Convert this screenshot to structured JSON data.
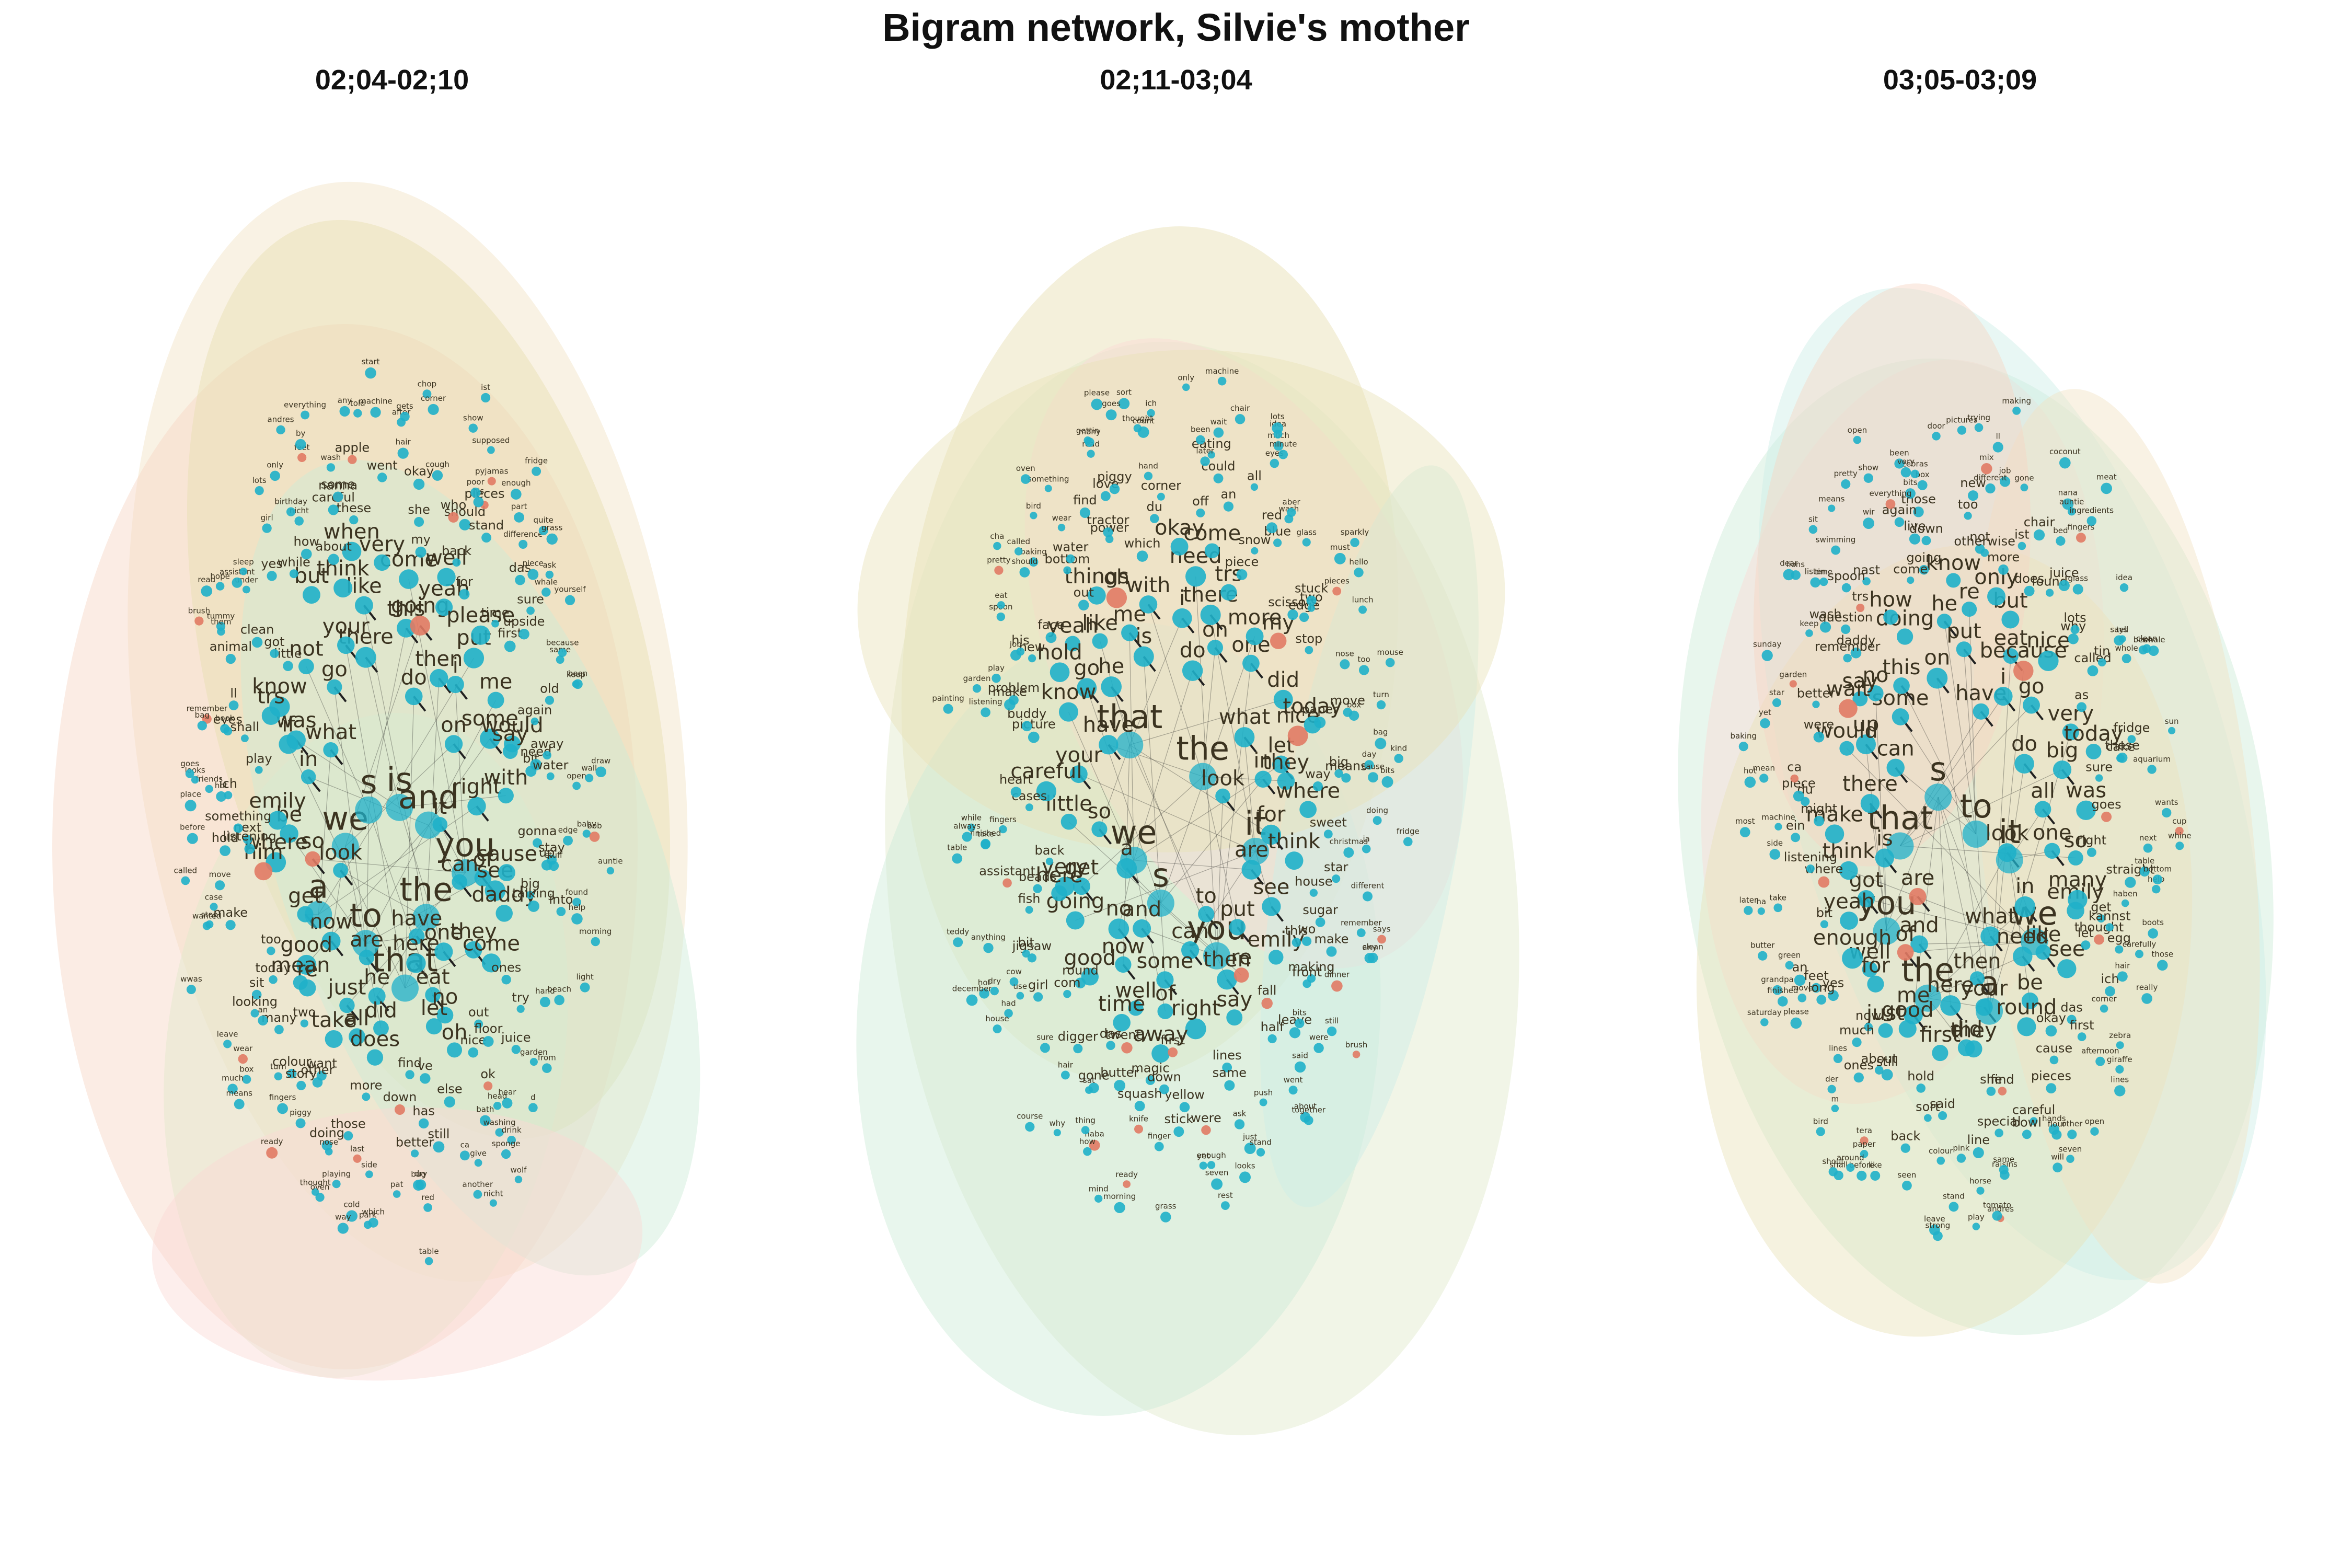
{
  "title": "Bigram network, Silvie's mother",
  "colors": {
    "node_primary": "#1fb0c9",
    "node_secondary": "#e17a64",
    "edge": "#222222",
    "label": "#3b3320",
    "community_fills": [
      "#f1e3c4",
      "#f7d4c4",
      "#e7ddb0",
      "#dfe8c9",
      "#cdebd6",
      "#fbd9d4",
      "#cdeee6",
      "#e9e2b8"
    ]
  },
  "panels": [
    {
      "title": "02;04-02;10",
      "big": [
        "you",
        "the",
        "that",
        "to",
        "a",
        "we",
        "s",
        "is",
        "and"
      ],
      "mid": [
        "it",
        "look",
        "do",
        "have",
        "what",
        "on",
        "are",
        "there",
        "can",
        "so",
        "then",
        "here",
        "go",
        "right",
        "now",
        "this",
        "one",
        "in",
        "i",
        "he",
        "your",
        "of",
        "get",
        "going",
        "eat",
        "was",
        "some",
        "just",
        "like",
        "they",
        "be",
        "put",
        "did",
        "not",
        "with",
        "good",
        "come",
        "no",
        "if",
        "me",
        "all",
        "think",
        "see",
        "where",
        "yeah",
        "let",
        "know",
        "would",
        "re",
        "very",
        "come",
        "emily",
        "please",
        "does",
        "but",
        "cause",
        "mean",
        "well",
        "oh",
        "trs",
        "say",
        "take",
        "when",
        "daddy",
        "him",
        "for",
        "find",
        "little",
        "bit",
        "two",
        "my",
        "out",
        "play",
        "first",
        "more",
        "about",
        "big",
        "too",
        "back",
        "ve",
        "got",
        "need",
        "want",
        "these",
        "ones",
        "next",
        "time",
        "down",
        "how",
        "gonna",
        "today",
        "she",
        "nice",
        "shall",
        "again",
        "other",
        "careful",
        "talking",
        "listening",
        "should",
        "has",
        "clean",
        "away",
        "many",
        "went",
        "floor",
        "something",
        "upside",
        "those",
        "while",
        "stay",
        "sit",
        "who",
        "else",
        "ll",
        "old",
        "colour",
        "nanna",
        "try",
        "hold",
        "stand",
        "better",
        "yes",
        "up",
        "looking",
        "okay",
        "ok",
        "eyes",
        "sure",
        "doing",
        "some",
        "into",
        "make",
        "pieces",
        "still",
        "animal",
        "water",
        "story",
        "apple",
        "juice",
        "ich",
        "das",
        "side",
        "nicht",
        "stuff",
        "an",
        "cough",
        "bath",
        "book",
        "same",
        "nose",
        "wash",
        "hand",
        "move",
        "his",
        "dry",
        "under",
        "open",
        "turn",
        "hair",
        "head",
        "hot",
        "piece",
        "last",
        "birthday",
        "found",
        "stop",
        "poor",
        "ca",
        "tummy",
        "keep",
        "piggy",
        "machine",
        "garden",
        "friends",
        "difference",
        "pat",
        "girl",
        "edge",
        "box",
        "after",
        "washing",
        "remember",
        "whale",
        "cold",
        "feet",
        "beach",
        "case",
        "pyjamas",
        "bug",
        "assistant",
        "wall",
        "fingers",
        "gets",
        "hear",
        "place",
        "part",
        "playing",
        "lots",
        "help",
        "leave",
        "show",
        "give",
        "them",
        "because",
        "thought",
        "told",
        "from",
        "before",
        "enough",
        "red",
        "sleep",
        "baby",
        "wear",
        "chop",
        "drink",
        "bag",
        "ask",
        "park",
        "everything",
        "morning",
        "wanted",
        "supposed",
        "another",
        "hope",
        "been",
        "ready",
        "any",
        "d",
        "looks",
        "quite",
        "which",
        "only",
        "bob",
        "much",
        "corner",
        "sponge",
        "brush",
        "yourself",
        "oven",
        "by",
        "light",
        "called",
        "fridge",
        "table",
        "read",
        "draw",
        "means",
        "start",
        "wolf",
        "goes",
        "grass",
        "way",
        "andres",
        "auntie",
        "wwas",
        "ist",
        "nicht"
      ]
    },
    {
      "title": "02;11-03;04",
      "big": [
        "you",
        "s",
        "we",
        "that",
        "the",
        "it"
      ],
      "mid": [
        "look",
        "a",
        "do",
        "to",
        "have",
        "what",
        "and",
        "is",
        "are",
        "so",
        "on",
        "can",
        "he",
        "in",
        "no",
        "i",
        "put",
        "your",
        "one",
        "some",
        "me",
        "for",
        "get",
        "there",
        "then",
        "go",
        "let",
        "now",
        "with",
        "see",
        "little",
        "more",
        "of",
        "like",
        "they",
        "going",
        "need",
        "re",
        "know",
        "did",
        "well",
        "oh",
        "think",
        "very",
        "trs",
        "right",
        "yeah",
        "nice",
        "good",
        "okay",
        "emily",
        "careful",
        "my",
        "away",
        "things",
        "where",
        "here",
        "come",
        "say",
        "hold",
        "today",
        "time",
        "which",
        "this",
        "back",
        "piece",
        "first",
        "out",
        "way",
        "round",
        "off",
        "fall",
        "picture",
        "scissors",
        "twenty",
        "power",
        "house",
        "beads",
        "snow",
        "lines",
        "face",
        "paper",
        "das",
        "du",
        "wo",
        "cases",
        "edge",
        "magic",
        "bottom",
        "sweet",
        "com",
        "an",
        "half",
        "buddy",
        "stop",
        "butter",
        "tractor",
        "sugar",
        "fish",
        "blue",
        "yellow",
        "new",
        "means",
        "digger",
        "corner",
        "making",
        "heart",
        "two",
        "down",
        "love",
        "star",
        "jigsaw",
        "could",
        "same",
        "problem",
        "move",
        "gone",
        "piggy",
        "front",
        "assistant",
        "red",
        "stick",
        "water",
        "big",
        "girl",
        "eating",
        "leave",
        "make",
        "stuck",
        "squash",
        "find",
        "make",
        "bit",
        "all",
        "were",
        "his",
        "box",
        "hair",
        "hand",
        "bits",
        "fingers",
        "glass",
        "knife",
        "wear",
        "christmas",
        "cow",
        "later",
        "ask",
        "job",
        "nose",
        "sat",
        "count",
        "dinner",
        "take",
        "wash",
        "enough",
        "baking",
        "day",
        "sure",
        "been",
        "said",
        "listening",
        "pieces",
        "finger",
        "read",
        "different",
        "use",
        "eyes",
        "push",
        "spoon",
        "bag",
        "haba",
        "ich",
        "still",
        "finished",
        "aber",
        "yet",
        "called",
        "ja",
        "dry",
        "chair",
        "went",
        "play",
        "too",
        "how",
        "many",
        "remember",
        "anything",
        "much",
        "looks",
        "should",
        "cause",
        "why",
        "thought",
        "were",
        "while",
        "must",
        "ready",
        "something",
        "doing",
        "had",
        "wait",
        "just",
        "eat",
        "turn",
        "thing",
        "please",
        "any",
        "always",
        "minute",
        "seven",
        "bird",
        "kind",
        "house",
        "only",
        "about",
        "garden",
        "hello",
        "morning",
        "gettin",
        "clean",
        "hot",
        "idea",
        "stand",
        "pretty",
        "mouse",
        "course",
        "sort",
        "brush",
        "table",
        "sparkly",
        "grass",
        "oven",
        "fridge",
        "december",
        "machine",
        "together",
        "painting",
        "lunch",
        "mind",
        "goes",
        "says",
        "teddy",
        "lots",
        "rest",
        "cha",
        "bits"
      ]
    },
    {
      "title": "03;05-03;09",
      "big": [
        "the",
        "you",
        "that",
        "s",
        "to",
        "it",
        "we",
        "a"
      ],
      "mid": [
        "look",
        "are",
        "have",
        "what",
        "can",
        "do",
        "and",
        "on",
        "in",
        "is",
        "i",
        "then",
        "some",
        "all",
        "of",
        "put",
        "need",
        "there",
        "go",
        "here",
        "this",
        "one",
        "got",
        "eat",
        "your",
        "up",
        "big",
        "me",
        "he",
        "like",
        "think",
        "because",
        "did",
        "no",
        "so",
        "well",
        "re",
        "be",
        "would",
        "very",
        "good",
        "doing",
        "emily",
        "yeah",
        "but",
        "they",
        "say",
        "was",
        "for",
        "know",
        "see",
        "make",
        "nice",
        "first",
        "how",
        "many",
        "enough",
        "only",
        "round",
        "wait",
        "today",
        "just",
        "going",
        "let",
        "where",
        "does",
        "she",
        "daddy",
        "right",
        "now",
        "not",
        "okay",
        "might",
        "as",
        "hold",
        "come",
        "get",
        "bit",
        "more",
        "find",
        "remember",
        "sure",
        "about",
        "down",
        "das",
        "du",
        "why",
        "said",
        "trs",
        "goes",
        "yes",
        "otherwise",
        "cause",
        "were",
        "called",
        "still",
        "live",
        "thought",
        "listening",
        "found",
        "special",
        "question",
        "cake",
        "much",
        "too",
        "first",
        "piece",
        "lots",
        "sort",
        "nast",
        "kannst",
        "feet",
        "ist",
        "careful",
        "better",
        "these",
        "ones",
        "those",
        "ich",
        "ein",
        "juice",
        "line",
        "spoon",
        "straight",
        "long",
        "new",
        "pieces",
        "ca",
        "tin",
        "back",
        "again",
        "egg",
        "an",
        "chair",
        "bowl",
        "wash",
        "fridge",
        "lines",
        "box",
        "corner",
        "machine",
        "glass",
        "pink",
        "wir",
        "haben",
        "move",
        "job",
        "hands",
        "garden",
        "whole",
        "tera",
        "bits",
        "hair",
        "side",
        "bed",
        "raisins",
        "time",
        "next",
        "der",
        "different",
        "other",
        "mean",
        "says",
        "colour",
        "everything",
        "help",
        "green",
        "gone",
        "same",
        "keep",
        "aquarium",
        "paper",
        "zebras",
        "afternoon",
        "take",
        "fingers",
        "stand",
        "swimming",
        "table",
        "please",
        "mix",
        "flour",
        "star",
        "tell",
        "like",
        "been",
        "really",
        "grandpa",
        "nana",
        "horse",
        "listen",
        "wants",
        "m",
        "trying",
        "zebra",
        "hot",
        "idea",
        "seen",
        "means",
        "carefully",
        "finished",
        "ll",
        "will",
        "yet",
        "been",
        "before",
        "very",
        "giraffe",
        "ha",
        "auntie",
        "andres",
        "sit",
        "bottom",
        "bird",
        "pictures",
        "seven",
        "baking",
        "whale",
        "leave",
        "show",
        "boots",
        "butter",
        "coconut",
        "tomato",
        "lions",
        "sun",
        "shall",
        "door",
        "lines",
        "most",
        "ingredients",
        "strong",
        "pretty",
        "cup",
        "saturday",
        "making",
        "open",
        "sunday",
        "clean",
        "around",
        "open",
        "those",
        "later",
        "meat",
        "play",
        "dear",
        "whine",
        "shout"
      ]
    }
  ]
}
